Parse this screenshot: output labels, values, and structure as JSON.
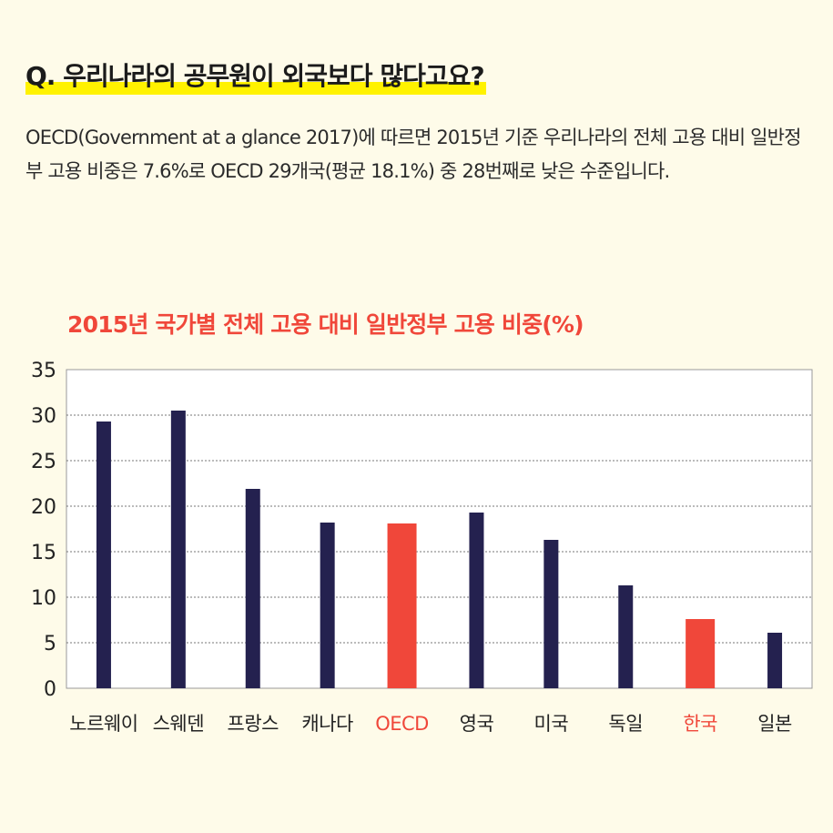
{
  "question": "Q. 우리나라의 공무원이 외국보다 많다고요?",
  "description": "OECD(Government at a glance 2017)에 따르면 2015년 기준 우리나라의 전체 고용 대비 일반정부 고용 비중은 7.6%로 OECD 29개국(평균 18.1%) 중 28번째로 낮은 수준입니다.",
  "colors": {
    "background": "#fefbe9",
    "highlight": "#fff200",
    "bar": "#24214f",
    "bar_highlight": "#f0473a"
  },
  "chart_data": {
    "type": "bar",
    "title": "2015년 국가별 전체 고용 대비 일반정부 고용 비중(%)",
    "categories": [
      "노르웨이",
      "스웨덴",
      "프랑스",
      "캐나다",
      "OECD",
      "영국",
      "미국",
      "독일",
      "한국",
      "일본"
    ],
    "values": [
      29.3,
      30.5,
      21.9,
      18.2,
      18.1,
      19.3,
      16.3,
      11.3,
      7.6,
      6.1
    ],
    "highlighted": [
      "OECD",
      "한국"
    ],
    "ylim": [
      0,
      35
    ],
    "yticks": [
      0,
      5,
      10,
      15,
      20,
      25,
      30,
      35
    ],
    "xlabel": "",
    "ylabel": "",
    "grid": true,
    "legend": "none"
  }
}
